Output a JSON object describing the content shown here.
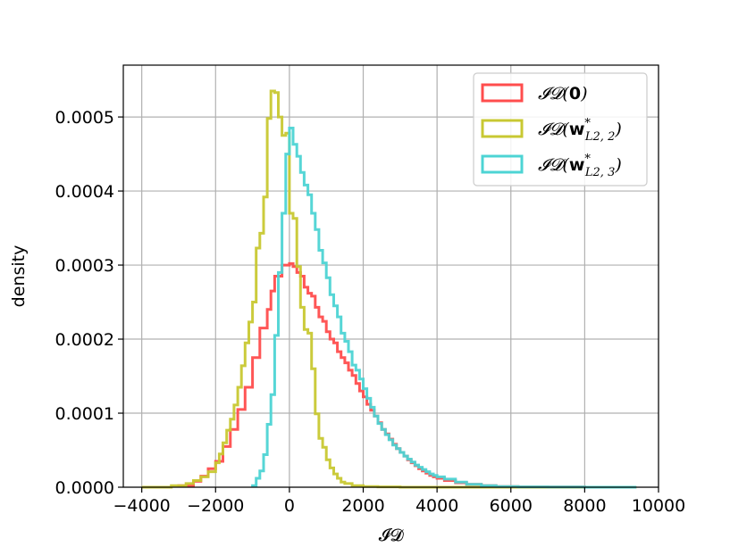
{
  "chart_data": {
    "type": "histogram",
    "xlabel": "𝓘𝓓",
    "ylabel": "density",
    "xlim": [
      -4500,
      10000
    ],
    "ylim": [
      0,
      0.00057
    ],
    "grid": true,
    "legend_position": "top-right",
    "x_ticks": [
      -4000,
      -2000,
      0,
      2000,
      4000,
      6000,
      8000,
      10000
    ],
    "x_tick_labels": [
      "−4000",
      "−2000",
      "0",
      "2000",
      "4000",
      "6000",
      "8000",
      "10000"
    ],
    "y_ticks": [
      0,
      0.0001,
      0.0002,
      0.0003,
      0.0004,
      0.0005
    ],
    "y_tick_labels": [
      "0.0000",
      "0.0001",
      "0.0002",
      "0.0003",
      "0.0004",
      "0.0005"
    ],
    "series": [
      {
        "name": "𝓘𝓓(0)",
        "legend_base": "𝓘𝓓(",
        "legend_bold": "0",
        "legend_sub": "",
        "color": "#ff4d4d",
        "bins": [
          [
            -3000,
            2e-06
          ],
          [
            -2600,
            8e-06
          ],
          [
            -2400,
            1.5e-05
          ],
          [
            -2200,
            2.5e-05
          ],
          [
            -2000,
            3.5e-05
          ],
          [
            -1800,
            5.5e-05
          ],
          [
            -1600,
            7.8e-05
          ],
          [
            -1400,
            0.000105
          ],
          [
            -1200,
            0.000135
          ],
          [
            -1000,
            0.000175
          ],
          [
            -800,
            0.000215
          ],
          [
            -600,
            0.00024
          ],
          [
            -500,
            0.000265
          ],
          [
            -400,
            0.000285
          ],
          [
            -200,
            0.0003
          ],
          [
            0,
            0.000302
          ],
          [
            100,
            0.000298
          ],
          [
            200,
            0.00029
          ],
          [
            300,
            0.000285
          ],
          [
            400,
            0.00027
          ],
          [
            500,
            0.000262
          ],
          [
            600,
            0.000258
          ],
          [
            700,
            0.000243
          ],
          [
            800,
            0.00023
          ],
          [
            900,
            0.000224
          ],
          [
            1000,
            0.00021
          ],
          [
            1100,
            0.0002
          ],
          [
            1200,
            0.000195
          ],
          [
            1300,
            0.000183
          ],
          [
            1400,
            0.000175
          ],
          [
            1500,
            0.000168
          ],
          [
            1600,
            0.000158
          ],
          [
            1700,
            0.000151
          ],
          [
            1800,
            0.00014
          ],
          [
            1900,
            0.00013
          ],
          [
            2000,
            0.000122
          ],
          [
            2100,
            0.000112
          ],
          [
            2200,
            0.000104
          ],
          [
            2300,
            9.6e-05
          ],
          [
            2400,
            8.7e-05
          ],
          [
            2500,
            7.8e-05
          ],
          [
            2600,
            7.2e-05
          ],
          [
            2700,
            6.5e-05
          ],
          [
            2800,
            5.8e-05
          ],
          [
            2900,
            5.2e-05
          ],
          [
            3000,
            4.7e-05
          ],
          [
            3100,
            4.2e-05
          ],
          [
            3200,
            3.7e-05
          ],
          [
            3300,
            3.3e-05
          ],
          [
            3400,
            2.9e-05
          ],
          [
            3500,
            2.5e-05
          ],
          [
            3600,
            2.2e-05
          ],
          [
            3700,
            1.9e-05
          ],
          [
            3800,
            1.6e-05
          ],
          [
            3900,
            1.4e-05
          ],
          [
            4000,
            1.2e-05
          ],
          [
            4200,
            9e-06
          ],
          [
            4500,
            6e-06
          ],
          [
            4800,
            4e-06
          ],
          [
            5200,
            2e-06
          ],
          [
            5600,
            1e-06
          ],
          [
            6200,
            5e-07
          ],
          [
            7000,
            2e-07
          ],
          [
            8000,
            0
          ]
        ],
        "end": 9400
      },
      {
        "name": "𝓘𝓓(w*L2,2)",
        "legend_base": "𝓘𝓓(",
        "legend_bold": "w",
        "legend_sub": "L2, 2",
        "color": "#c8c832",
        "bins": [
          [
            -4000,
            0
          ],
          [
            -3200,
            2e-06
          ],
          [
            -2800,
            5e-06
          ],
          [
            -2600,
            9e-06
          ],
          [
            -2400,
            1.4e-05
          ],
          [
            -2200,
            2.1e-05
          ],
          [
            -2000,
            3.3e-05
          ],
          [
            -1900,
            4.5e-05
          ],
          [
            -1800,
            6e-05
          ],
          [
            -1700,
            7.7e-05
          ],
          [
            -1600,
            9.2e-05
          ],
          [
            -1500,
            0.000111
          ],
          [
            -1400,
            0.000135
          ],
          [
            -1300,
            0.000164
          ],
          [
            -1200,
            0.000195
          ],
          [
            -1100,
            0.000223
          ],
          [
            -1000,
            0.00025
          ],
          [
            -900,
            0.000323
          ],
          [
            -800,
            0.000343
          ],
          [
            -700,
            0.000392
          ],
          [
            -600,
            0.000498
          ],
          [
            -500,
            0.000535
          ],
          [
            -400,
            0.000533
          ],
          [
            -300,
            0.0005
          ],
          [
            -200,
            0.000475
          ],
          [
            -100,
            0.000478
          ],
          [
            0,
            0.00037
          ],
          [
            100,
            0.000363
          ],
          [
            200,
            0.000298
          ],
          [
            300,
            0.000243
          ],
          [
            400,
            0.000213
          ],
          [
            500,
            0.000208
          ],
          [
            600,
            0.00016
          ],
          [
            700,
            9.9e-05
          ],
          [
            800,
            6.6e-05
          ],
          [
            900,
            5.4e-05
          ],
          [
            1000,
            3.7e-05
          ],
          [
            1100,
            2.6e-05
          ],
          [
            1200,
            1.8e-05
          ],
          [
            1300,
            1.2e-05
          ],
          [
            1400,
            7e-06
          ],
          [
            1500,
            5e-06
          ],
          [
            1700,
            2e-06
          ],
          [
            2000,
            1e-06
          ],
          [
            2400,
            5e-07
          ],
          [
            3000,
            0
          ]
        ],
        "end": 9400
      },
      {
        "name": "𝓘𝓓(w*L2,3)",
        "legend_base": "𝓘𝓓(",
        "legend_bold": "w",
        "legend_sub": "L2, 3",
        "color": "#4dd4d4",
        "bins": [
          [
            -1000,
            2e-06
          ],
          [
            -900,
            1.2e-05
          ],
          [
            -800,
            2.2e-05
          ],
          [
            -700,
            4.4e-05
          ],
          [
            -600,
            8.5e-05
          ],
          [
            -500,
            0.000125
          ],
          [
            -400,
            0.000205
          ],
          [
            -300,
            0.00029
          ],
          [
            -200,
            0.00037
          ],
          [
            -100,
            0.00045
          ],
          [
            0,
            0.000485
          ],
          [
            100,
            0.000463
          ],
          [
            200,
            0.000447
          ],
          [
            300,
            0.000425
          ],
          [
            400,
            0.000408
          ],
          [
            500,
            0.000395
          ],
          [
            600,
            0.00037
          ],
          [
            700,
            0.000348
          ],
          [
            800,
            0.00032
          ],
          [
            900,
            0.000303
          ],
          [
            1000,
            0.000283
          ],
          [
            1100,
            0.00026
          ],
          [
            1200,
            0.000245
          ],
          [
            1300,
            0.00023
          ],
          [
            1400,
            0.000208
          ],
          [
            1500,
            0.000197
          ],
          [
            1600,
            0.000183
          ],
          [
            1700,
            0.000165
          ],
          [
            1800,
            0.000158
          ],
          [
            1900,
            0.000146
          ],
          [
            2000,
            0.000133
          ],
          [
            2100,
            0.00012
          ],
          [
            2200,
            0.000108
          ],
          [
            2300,
            9.6e-05
          ],
          [
            2400,
            8.6e-05
          ],
          [
            2500,
            7.8e-05
          ],
          [
            2600,
            7.1e-05
          ],
          [
            2700,
            6.4e-05
          ],
          [
            2800,
            5.7e-05
          ],
          [
            2900,
            5.2e-05
          ],
          [
            3000,
            4.7e-05
          ],
          [
            3100,
            4.2e-05
          ],
          [
            3200,
            3.8e-05
          ],
          [
            3300,
            3.4e-05
          ],
          [
            3400,
            3e-05
          ],
          [
            3500,
            2.7e-05
          ],
          [
            3600,
            2.4e-05
          ],
          [
            3700,
            2.1e-05
          ],
          [
            3800,
            1.8e-05
          ],
          [
            3900,
            1.6e-05
          ],
          [
            4000,
            1.4e-05
          ],
          [
            4200,
            1.1e-05
          ],
          [
            4500,
            7e-06
          ],
          [
            4800,
            4e-06
          ],
          [
            5200,
            2e-06
          ],
          [
            5600,
            1e-06
          ],
          [
            6200,
            5e-07
          ],
          [
            7000,
            2e-07
          ],
          [
            8000,
            0
          ]
        ],
        "end": 9400
      }
    ]
  }
}
